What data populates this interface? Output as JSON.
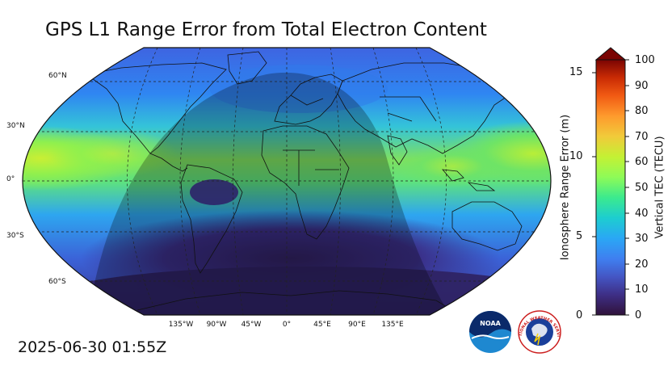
{
  "title": "GPS L1 Range Error from Total Electron Content",
  "timestamp": "2025-06-30 01:55Z",
  "map": {
    "projection": "Robinson",
    "lat_labels": [
      "60°N",
      "30°N",
      "0°",
      "30°S",
      "60°S"
    ],
    "lon_labels": [
      "135°W",
      "90°W",
      "45°W",
      "0°",
      "45°E",
      "90°E",
      "135°E"
    ],
    "shading": "night-side terminator overlay"
  },
  "colorbar": {
    "left_axis_title": "Ionosphere Range Error (m)",
    "left_ticks": [
      "0",
      "5",
      "10",
      "15"
    ],
    "right_axis_title": "Vertical TEC (TECU)",
    "right_ticks": [
      "0",
      "10",
      "20",
      "30",
      "40",
      "50",
      "60",
      "70",
      "80",
      "90",
      "100"
    ],
    "extend": "max",
    "colormap": "turbo",
    "range_tecu": [
      0,
      100
    ],
    "range_m": [
      0,
      16.2
    ]
  },
  "logos": {
    "noaa": "NOAA",
    "nws": "NATIONAL WEATHER SERVICE"
  }
}
